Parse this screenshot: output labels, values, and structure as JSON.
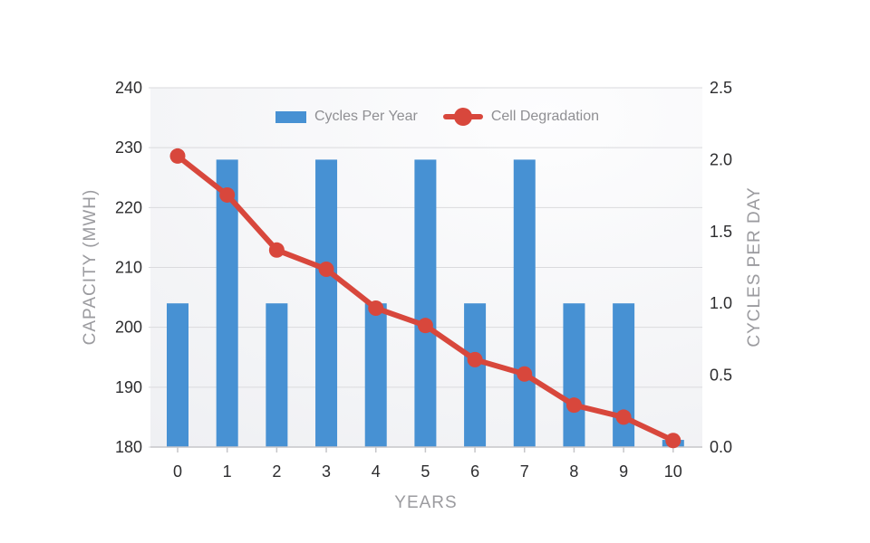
{
  "chart_data": {
    "type": "bar",
    "title": "",
    "xlabel": "YEARS",
    "categories": [
      "0",
      "1",
      "2",
      "3",
      "4",
      "5",
      "6",
      "7",
      "8",
      "9",
      "10"
    ],
    "series": [
      {
        "name": "Cycles Per Year",
        "type": "bar",
        "axis": "right",
        "color": "#4791d3",
        "values": [
          1.0,
          2.0,
          1.0,
          2.0,
          1.0,
          2.0,
          1.0,
          2.0,
          1.0,
          1.0,
          0.05
        ]
      },
      {
        "name": "Cell Degradation",
        "type": "line",
        "axis": "left",
        "color": "#d8473c",
        "values": [
          228.6,
          222.1,
          212.9,
          209.7,
          203.2,
          200.3,
          194.6,
          192.2,
          187.0,
          185.0,
          181.1
        ]
      }
    ],
    "left_axis": {
      "label": "CAPACITY (MWH)",
      "min": 180,
      "max": 240,
      "step": 10,
      "ticks": [
        "240",
        "230",
        "220",
        "210",
        "200",
        "190",
        "180"
      ]
    },
    "right_axis": {
      "label": "CYCLES PER DAY",
      "min": 0,
      "max": 2.5,
      "step": 0.5,
      "ticks": [
        "2.5",
        "2.0",
        "1.5",
        "1.0",
        "0.5",
        "0.0"
      ]
    },
    "grid": true,
    "legend_position": "top-center-inside",
    "colors": {
      "bar_blue": "#4791d3",
      "line_red": "#d8473c",
      "gridline": "#dadadd",
      "axis_line": "#c6c6c9",
      "tick_text": "#2d2d2f",
      "axis_title_text": "#9b9b9f",
      "legend_text": "#8f8f93",
      "plot_bg_light": "#fdfdfe",
      "plot_bg_dark": "#eff0f3",
      "page_bg": "#ffffff"
    }
  }
}
